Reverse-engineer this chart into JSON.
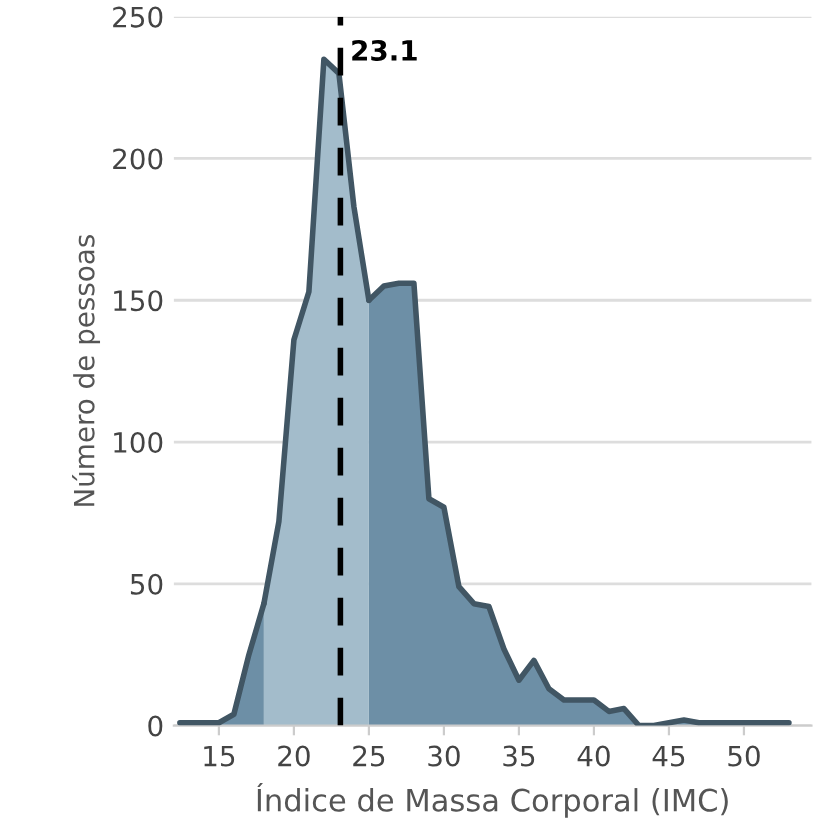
{
  "chart_data": {
    "type": "area",
    "xlabel": "Índice de Massa Corporal (IMC)",
    "ylabel": "Número de pessoas",
    "series": [
      {
        "color": "#6d8fa6",
        "x": [
          12.4,
          13,
          14,
          15,
          16,
          17,
          18,
          19,
          20,
          21,
          22,
          23,
          24,
          25,
          26,
          27,
          28,
          29,
          30,
          31,
          32,
          33,
          34,
          35,
          36,
          37,
          38,
          39,
          40,
          41,
          42,
          43,
          44,
          45,
          46,
          47,
          48,
          49,
          50,
          51,
          52,
          53
        ],
        "values": [
          1,
          1,
          1,
          1,
          4,
          25,
          43,
          null,
          null,
          null,
          null,
          null,
          null,
          150,
          155,
          156,
          156,
          80,
          77,
          49,
          43,
          42,
          27,
          16,
          23,
          13,
          9,
          9,
          9,
          5,
          6,
          0,
          0,
          1,
          2,
          1,
          1,
          1,
          1,
          1,
          1,
          1
        ]
      },
      {
        "color": "#a3bccb",
        "x": [
          18,
          19,
          20,
          21,
          22,
          23,
          24,
          25
        ],
        "values": [
          43,
          72,
          136,
          153,
          235,
          230,
          183,
          150
        ]
      }
    ],
    "ref_lines": [
      {
        "axis": "x",
        "value": 23.1,
        "label": "23.1",
        "line_style": "dashed",
        "color": "#000000"
      }
    ],
    "xlim": [
      12,
      54.5
    ],
    "ylim": [
      0,
      250
    ],
    "xticks": [
      15,
      20,
      25,
      30,
      35,
      40,
      45,
      50
    ],
    "yticks": [
      0,
      50,
      100,
      150,
      200,
      250
    ],
    "grid": "y",
    "legend": false
  }
}
